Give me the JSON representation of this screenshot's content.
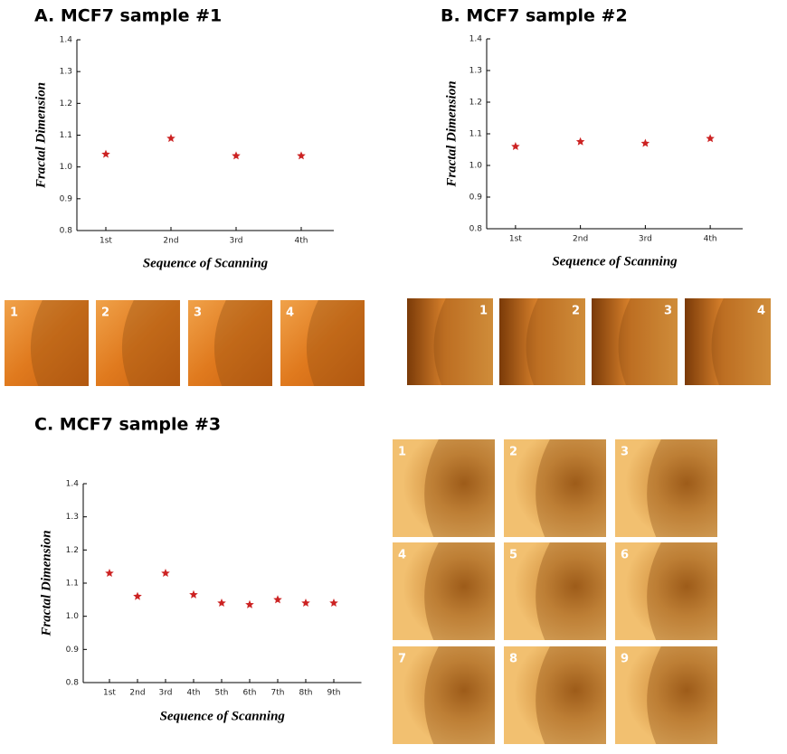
{
  "chart_data": [
    {
      "type": "scatter",
      "title": "A. MCF7 sample #1",
      "x_label": "Sequence of Scanning",
      "y_label": "Fractal Dimension",
      "categories": [
        "1st",
        "2nd",
        "3rd",
        "4th"
      ],
      "values": [
        1.04,
        1.09,
        1.035,
        1.035
      ],
      "color": "#cc2222",
      "marker": "star",
      "ylim": [
        0.8,
        1.4
      ],
      "yticks": [
        0.8,
        0.9,
        {
          "value": 1,
          "label": "1.0"
        },
        1.1,
        1.2,
        1.3,
        1.4
      ]
    },
    {
      "type": "scatter",
      "title": "B. MCF7 sample #2",
      "x_label": "Sequence of Scanning",
      "y_label": "Fractal Dimension",
      "categories": [
        "1st",
        "2nd",
        "3rd",
        "4th"
      ],
      "values": [
        1.06,
        1.075,
        1.07,
        1.085
      ],
      "color": "#cc2222",
      "marker": "star",
      "ylim": [
        0.8,
        1.4
      ],
      "yticks": [
        0.8,
        0.9,
        {
          "value": 1,
          "label": "1.0"
        },
        1.1,
        1.2,
        1.3,
        1.4
      ]
    },
    {
      "type": "scatter",
      "title": "C. MCF7 sample #3",
      "x_label": "Sequence of Scanning",
      "y_label": "Fractal Dimension",
      "categories": [
        "1st",
        "2nd",
        "3rd",
        "4th",
        "5th",
        "6th",
        "7th",
        "8th",
        "9th"
      ],
      "values": [
        1.13,
        1.06,
        1.13,
        1.065,
        1.04,
        1.035,
        1.05,
        1.04,
        1.04
      ],
      "color": "#cc2222",
      "marker": "star",
      "ylim": [
        0.8,
        1.4
      ],
      "yticks": [
        0.8,
        0.9,
        {
          "value": 1,
          "label": "1.0"
        },
        1.1,
        1.2,
        1.3,
        1.4
      ]
    }
  ],
  "image_panels": [
    {
      "labels": [
        "1",
        "2",
        "3",
        "4"
      ]
    },
    {
      "labels": [
        "1",
        "2",
        "3",
        "4"
      ]
    },
    {
      "labels": [
        "1",
        "2",
        "3",
        "4",
        "5",
        "6",
        "7",
        "8",
        "9"
      ]
    }
  ]
}
